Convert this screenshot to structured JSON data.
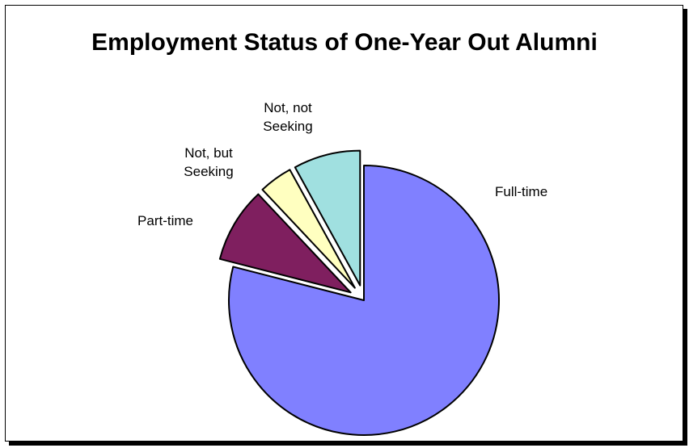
{
  "chart_data": {
    "type": "pie",
    "title": "Employment Status of One-Year Out Alumni",
    "slices": [
      {
        "label": "Full-time",
        "value": 79,
        "color": "#8080ff",
        "exploded": false,
        "label_lines": [
          "Full-time"
        ]
      },
      {
        "label": "Part-time",
        "value": 9,
        "color": "#7f1f5f",
        "exploded": true,
        "label_lines": [
          "Part-time"
        ]
      },
      {
        "label": "Not, but Seeking",
        "value": 4,
        "color": "#ffffc0",
        "exploded": true,
        "label_lines": [
          "Not, but",
          "Seeking"
        ]
      },
      {
        "label": "Not, not Seeking",
        "value": 8,
        "color": "#a0e0e0",
        "exploded": true,
        "label_lines": [
          "Not, not",
          "Seeking"
        ]
      }
    ],
    "start_angle_deg": 0,
    "direction": "clockwise",
    "legend": "none",
    "data_labels": "category-name"
  }
}
